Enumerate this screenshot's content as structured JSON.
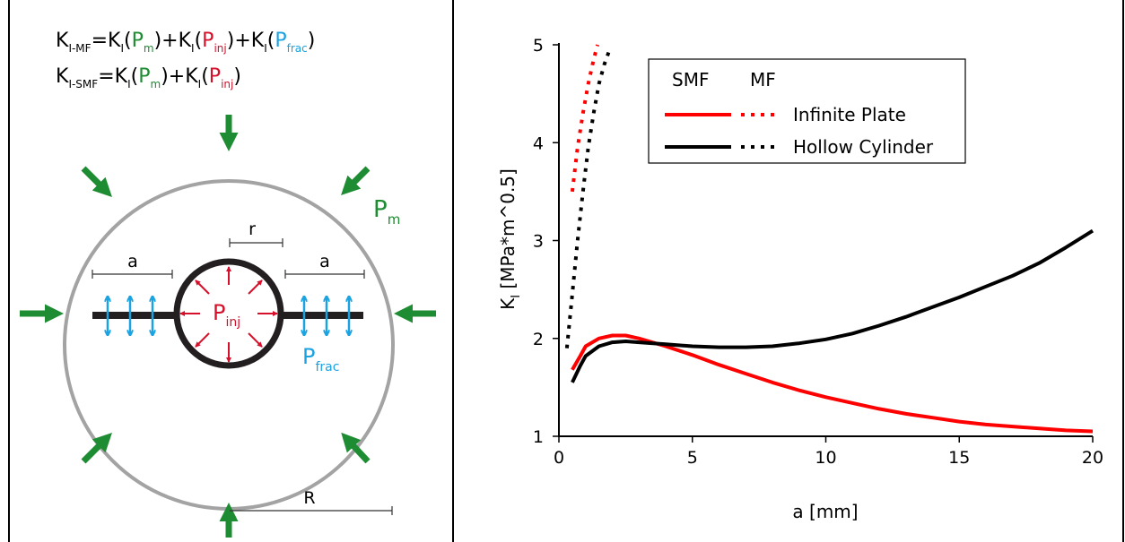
{
  "colors": {
    "matrix": "#1e8c32",
    "injection": "#d6102b",
    "fracture": "#1ba2e1",
    "infinite_plate": "#ff0000",
    "hollow_cylinder": "#000000",
    "outer_ring": "#a3a3a3"
  },
  "schematic": {
    "formula_mf": {
      "lhs_main": "K",
      "lhs_sub": "I-MF",
      "eq": "=",
      "t1_main": "K",
      "t1_sub": "I",
      "t1_open": "(",
      "t1_P": "P",
      "t1_Psub": "m",
      "t1_close": ")",
      "plus1": "+",
      "t2_main": "K",
      "t2_sub": "I",
      "t2_open": "(",
      "t2_P": "P",
      "t2_Psub": "inj",
      "t2_close": ")",
      "plus2": "+",
      "t3_main": "K",
      "t3_sub": "I",
      "t3_open": "(",
      "t3_P": "P",
      "t3_Psub": "frac",
      "t3_close": ")"
    },
    "formula_smf": {
      "lhs_main": "K",
      "lhs_sub": "I-SMF",
      "eq": "=",
      "t1_main": "K",
      "t1_sub": "I",
      "t1_open": "(",
      "t1_P": "P",
      "t1_Psub": "m",
      "t1_close": ")",
      "plus1": "+",
      "t2_main": "K",
      "t2_sub": "I",
      "t2_open": "(",
      "t2_P": "P",
      "t2_Psub": "inj",
      "t2_close": ")"
    },
    "labels": {
      "r": "r",
      "a_left": "a",
      "a_right": "a",
      "R": "R",
      "p_m": "P",
      "p_m_sub": "m",
      "p_inj": "P",
      "p_inj_sub": "inj",
      "p_frac": "P",
      "p_frac_sub": "frac"
    }
  },
  "chart_data": {
    "type": "line",
    "title": "",
    "xlabel": "a [mm]",
    "ylabel_main": "K",
    "ylabel_sub": "I",
    "ylabel_rest": " [MPa*m^0.5]",
    "xlim": [
      0,
      20
    ],
    "ylim": [
      1,
      5
    ],
    "xticks": [
      0,
      5,
      10,
      15,
      20
    ],
    "yticks": [
      1,
      2,
      3,
      4,
      5
    ],
    "grid": false,
    "legend": {
      "position": "top-right",
      "header_smf": "SMF",
      "header_mf": "MF",
      "entries": [
        "Infinite Plate",
        "Hollow Cylinder"
      ]
    },
    "series": [
      {
        "name": "Infinite Plate",
        "variant": "SMF",
        "style": "solid",
        "color": "#ff0000",
        "x": [
          0.5,
          0.8,
          1,
          1.5,
          2,
          2.5,
          3,
          4,
          5,
          6,
          7,
          8,
          9,
          10,
          11,
          12,
          13,
          14,
          15,
          16,
          17,
          18,
          19,
          20
        ],
        "y": [
          1.68,
          1.82,
          1.92,
          2.0,
          2.03,
          2.03,
          2.0,
          1.92,
          1.83,
          1.73,
          1.64,
          1.55,
          1.47,
          1.4,
          1.34,
          1.28,
          1.23,
          1.19,
          1.15,
          1.12,
          1.1,
          1.08,
          1.06,
          1.05
        ]
      },
      {
        "name": "Infinite Plate",
        "variant": "MF",
        "style": "dotted",
        "color": "#ff0000",
        "x": [
          0.5,
          0.7,
          0.9,
          1.1,
          1.3,
          1.45
        ],
        "y": [
          3.5,
          3.95,
          4.3,
          4.6,
          4.85,
          5.0
        ]
      },
      {
        "name": "Hollow Cylinder",
        "variant": "SMF",
        "style": "solid",
        "color": "#000000",
        "x": [
          0.5,
          0.8,
          1,
          1.5,
          2,
          2.5,
          3,
          4,
          5,
          6,
          7,
          8,
          9,
          10,
          11,
          12,
          13,
          14,
          15,
          16,
          17,
          18,
          19,
          20
        ],
        "y": [
          1.55,
          1.72,
          1.82,
          1.92,
          1.96,
          1.97,
          1.96,
          1.94,
          1.92,
          1.91,
          1.91,
          1.92,
          1.95,
          1.99,
          2.05,
          2.13,
          2.22,
          2.32,
          2.42,
          2.53,
          2.64,
          2.77,
          2.93,
          3.1
        ]
      },
      {
        "name": "Hollow Cylinder",
        "variant": "MF",
        "style": "dotted",
        "color": "#000000",
        "x": [
          0.3,
          0.5,
          0.7,
          0.9,
          1.1,
          1.3,
          1.5,
          1.7,
          1.9
        ],
        "y": [
          1.9,
          2.45,
          3.0,
          3.5,
          3.95,
          4.3,
          4.6,
          4.8,
          4.95
        ]
      }
    ]
  }
}
